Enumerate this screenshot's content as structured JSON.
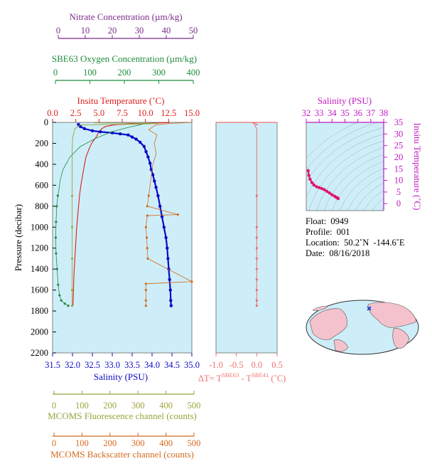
{
  "colors": {
    "nitrate": "#7b2a8a",
    "oxygen": "#1e8c3c",
    "temperature": "#e01b1b",
    "salinity": "#0a0ac8",
    "fluorescence": "#9aa33a",
    "backscatter": "#d46a1e",
    "tdiff": "#f07070",
    "ts_axis": "#c218c2",
    "ts_line": "#e0156b",
    "panel_bg": "#cdeef8"
  },
  "axes": {
    "nitrate": {
      "label": "Nitrate Concentration (µm/kg)",
      "ticks": [
        "0",
        "10",
        "20",
        "30",
        "40",
        "50"
      ]
    },
    "oxygen": {
      "label": "SBE63 Oxygen Concentration (µm/kg)",
      "ticks": [
        "0",
        "100",
        "200",
        "300",
        "400"
      ]
    },
    "temperature": {
      "label": "Insitu Temperature (˚C)",
      "ticks": [
        "0.0",
        "2.5",
        "5.0",
        "7.5",
        "10.0",
        "12.5",
        "15.0"
      ]
    },
    "salinity": {
      "label": "Salinity (PSU)",
      "ticks": [
        "31.5",
        "32.0",
        "32.5",
        "33.0",
        "33.5",
        "34.0",
        "34.5",
        "35.0"
      ]
    },
    "pressure": {
      "label": "Pressure (decibar)",
      "ticks": [
        "0",
        "200",
        "400",
        "600",
        "800",
        "1000",
        "1200",
        "1400",
        "1600",
        "1800",
        "2000",
        "2200"
      ]
    },
    "fluorescence": {
      "label": "MCOMS Fluorescence channel (counts)",
      "ticks": [
        "0",
        "100",
        "200",
        "300",
        "400",
        "500"
      ]
    },
    "backscatter": {
      "label": "MCOMS Backscatter channel (counts)",
      "ticks": [
        "0",
        "100",
        "200",
        "300",
        "400",
        "500"
      ]
    },
    "tdiff": {
      "label_main": "ΔT= T",
      "sup1": "SBE63",
      "label_mid": " - T",
      "sup2": "SBE41",
      "label_unit": " (˚C)",
      "ticks": [
        "-1.0",
        "-0.5",
        "0.0",
        "0.5"
      ]
    },
    "ts_salinity": {
      "label": "Salinity (PSU)",
      "ticks": [
        "32",
        "33",
        "34",
        "35",
        "36",
        "37",
        "38"
      ]
    },
    "ts_temperature": {
      "label": "Insitu Temperature (˚C)",
      "ticks": [
        "0",
        "5",
        "10",
        "15",
        "20",
        "25",
        "30",
        "35"
      ]
    }
  },
  "info": {
    "float": "Float:  0949",
    "profile": "Profile:  001",
    "location": "Location:  50.2˚N  -144.6˚E",
    "date": "Date:  08/16/2018"
  },
  "chart_data": [
    {
      "type": "line",
      "name": "profile",
      "ylim": [
        0,
        2200
      ],
      "y_reversed": true,
      "series": [
        {
          "name": "Insitu Temperature",
          "xlim": [
            0,
            15
          ],
          "points": [
            [
              12.6,
              2
            ],
            [
              11.0,
              6
            ],
            [
              9.5,
              10
            ],
            [
              8.0,
              16
            ],
            [
              6.6,
              24
            ],
            [
              5.7,
              40
            ],
            [
              5.3,
              60
            ],
            [
              5.0,
              90
            ],
            [
              4.7,
              140
            ],
            [
              4.2,
              200
            ],
            [
              3.9,
              260
            ],
            [
              3.6,
              330
            ],
            [
              3.4,
              420
            ],
            [
              3.2,
              520
            ],
            [
              3.05,
              600
            ],
            [
              2.9,
              700
            ],
            [
              2.8,
              800
            ],
            [
              2.7,
              900
            ],
            [
              2.6,
              1000
            ],
            [
              2.5,
              1150
            ],
            [
              2.4,
              1300
            ],
            [
              2.3,
              1450
            ],
            [
              2.25,
              1600
            ],
            [
              2.2,
              1750
            ]
          ]
        },
        {
          "name": "Salinity",
          "xlim": [
            31.5,
            35.0
          ],
          "points": [
            [
              32.15,
              20
            ],
            [
              32.2,
              40
            ],
            [
              32.3,
              60
            ],
            [
              32.5,
              80
            ],
            [
              32.7,
              90
            ],
            [
              33.0,
              100
            ],
            [
              33.2,
              110
            ],
            [
              33.4,
              120
            ],
            [
              33.5,
              140
            ],
            [
              33.6,
              160
            ],
            [
              33.7,
              190
            ],
            [
              33.8,
              230
            ],
            [
              33.85,
              280
            ],
            [
              33.9,
              330
            ],
            [
              33.95,
              390
            ],
            [
              33.98,
              450
            ],
            [
              34.02,
              500
            ],
            [
              34.06,
              560
            ],
            [
              34.1,
              620
            ],
            [
              34.15,
              700
            ],
            [
              34.2,
              800
            ],
            [
              34.25,
              900
            ],
            [
              34.3,
              1000
            ],
            [
              34.35,
              1100
            ],
            [
              34.38,
              1200
            ],
            [
              34.4,
              1300
            ],
            [
              34.42,
              1400
            ],
            [
              34.44,
              1500
            ],
            [
              34.46,
              1600
            ],
            [
              34.47,
              1700
            ],
            [
              34.48,
              1750
            ]
          ]
        },
        {
          "name": "SBE63 Oxygen Concentration",
          "xlim": [
            0,
            400
          ],
          "points": [
            [
              270,
              5
            ],
            [
              255,
              20
            ],
            [
              215,
              50
            ],
            [
              170,
              90
            ],
            [
              125,
              150
            ],
            [
              80,
              230
            ],
            [
              50,
              330
            ],
            [
              30,
              450
            ],
            [
              22,
              550
            ],
            [
              18,
              650
            ],
            [
              15,
              700
            ],
            [
              12,
              800
            ],
            [
              10,
              950
            ],
            [
              9,
              1100
            ],
            [
              10,
              1250
            ],
            [
              13,
              1400
            ],
            [
              16,
              1550
            ],
            [
              20,
              1650
            ],
            [
              25,
              1700
            ],
            [
              35,
              1730
            ],
            [
              45,
              1750
            ]
          ]
        },
        {
          "name": "MCOMS Fluorescence channel",
          "xlim": [
            0,
            500
          ],
          "points": [
            [
              150,
              5
            ],
            [
              380,
              10
            ],
            [
              340,
              15
            ],
            [
              100,
              25
            ],
            [
              80,
              60
            ],
            [
              72,
              150
            ],
            [
              70,
              300
            ],
            [
              70,
              700
            ],
            [
              70,
              1000
            ],
            [
              70,
              1300
            ],
            [
              70,
              1600
            ],
            [
              70,
              1750
            ]
          ]
        },
        {
          "name": "MCOMS Backscatter channel",
          "xlim": [
            0,
            500
          ],
          "points": [
            [
              490,
              2
            ],
            [
              420,
              10
            ],
            [
              370,
              25
            ],
            [
              345,
              70
            ],
            [
              375,
              120
            ],
            [
              365,
              200
            ],
            [
              372,
              300
            ],
            [
              360,
              400
            ],
            [
              355,
              500
            ],
            [
              350,
              600
            ],
            [
              345,
              700
            ],
            [
              340,
              800
            ],
            [
              450,
              880
            ],
            [
              340,
              890
            ],
            [
              335,
              1000
            ],
            [
              338,
              1100
            ],
            [
              340,
              1200
            ],
            [
              342,
              1300
            ],
            [
              500,
              1520
            ],
            [
              335,
              1540
            ],
            [
              335,
              1600
            ],
            [
              335,
              1700
            ],
            [
              335,
              1750
            ]
          ]
        }
      ]
    },
    {
      "type": "line",
      "name": "temperature difference",
      "xlim": [
        -1.0,
        0.5
      ],
      "ylim": [
        0,
        2200
      ],
      "points": [
        [
          0.0,
          0
        ],
        [
          -0.1,
          10
        ],
        [
          0.02,
          20
        ],
        [
          -0.05,
          30
        ],
        [
          0.0,
          60
        ],
        [
          0.0,
          150
        ],
        [
          0.0,
          300
        ],
        [
          0.0,
          500
        ],
        [
          0.0,
          700
        ],
        [
          0.0,
          1000
        ],
        [
          0.0,
          1100
        ],
        [
          0.0,
          1200
        ],
        [
          0.0,
          1300
        ],
        [
          0.0,
          1400
        ],
        [
          0.0,
          1500
        ],
        [
          0.0,
          1600
        ],
        [
          0.0,
          1700
        ],
        [
          0.0,
          1750
        ]
      ]
    },
    {
      "type": "scatter",
      "name": "T-S diagram",
      "xlim": [
        32,
        38
      ],
      "ylim": [
        -3,
        35
      ],
      "points": [
        [
          32.15,
          14.2
        ],
        [
          32.2,
          12.2
        ],
        [
          32.3,
          10.5
        ],
        [
          32.45,
          9.0
        ],
        [
          32.6,
          8.0
        ],
        [
          32.8,
          7.3
        ],
        [
          33.0,
          6.9
        ],
        [
          33.2,
          6.5
        ],
        [
          33.4,
          6.0
        ],
        [
          33.6,
          5.3
        ],
        [
          33.8,
          4.6
        ],
        [
          34.0,
          3.8
        ],
        [
          34.2,
          3.2
        ],
        [
          34.3,
          2.8
        ],
        [
          34.4,
          2.5
        ],
        [
          34.48,
          2.2
        ]
      ]
    }
  ]
}
